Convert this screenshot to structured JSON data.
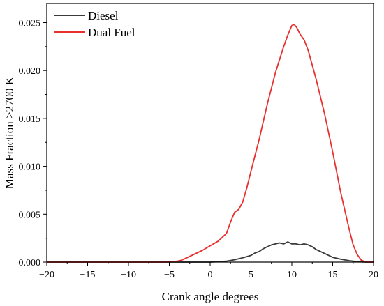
{
  "chart_data": {
    "type": "line",
    "title": "",
    "xlabel": "Crank angle degrees",
    "ylabel": "Mass Fraction >2700 K",
    "xlim": [
      -20,
      20
    ],
    "ylim": [
      0,
      0.027
    ],
    "x_ticks": [
      "−20",
      "−15",
      "−10",
      "−5",
      "0",
      "5",
      "10",
      "15",
      "20"
    ],
    "y_ticks": [
      "0.000",
      "0.005",
      "0.010",
      "0.015",
      "0.020",
      "0.025"
    ],
    "legend_position": "top-left",
    "grid": false,
    "series": [
      {
        "name": "Diesel",
        "color": "#3a3a3a",
        "x": [
          -20,
          -10,
          0,
          0.5,
          1,
          2,
          3,
          4,
          5,
          5.5,
          6,
          6.5,
          7,
          7.5,
          8,
          8.5,
          9,
          9.5,
          10,
          10.5,
          11,
          11.5,
          12,
          12.5,
          13,
          14,
          15,
          16,
          17,
          18,
          19,
          20
        ],
        "y": [
          0,
          0,
          0,
          2e-05,
          5e-05,
          0.0001,
          0.00025,
          0.00045,
          0.0007,
          0.00095,
          0.0011,
          0.0014,
          0.0016,
          0.0018,
          0.0019,
          0.002,
          0.0019,
          0.0021,
          0.0019,
          0.0019,
          0.0018,
          0.0019,
          0.0018,
          0.0016,
          0.0013,
          0.0009,
          0.0005,
          0.0003,
          0.00015,
          5e-05,
          0,
          0
        ]
      },
      {
        "name": "Dual Fuel",
        "color": "#e8302f",
        "x": [
          -20,
          -10,
          -5,
          -4,
          -3.5,
          -3,
          -2,
          -1,
          0,
          1,
          2,
          2.5,
          3,
          3.5,
          4,
          4.5,
          5,
          6,
          7,
          8,
          9,
          9.5,
          10,
          10.3,
          10.6,
          11,
          11.5,
          12,
          13,
          14,
          15,
          16,
          17,
          17.5,
          18,
          18.5,
          19,
          19.5,
          20
        ],
        "y": [
          0,
          0,
          0,
          0.0001,
          0.0002,
          0.0004,
          0.0008,
          0.0012,
          0.0017,
          0.0022,
          0.003,
          0.0042,
          0.0052,
          0.0055,
          0.0063,
          0.0078,
          0.0095,
          0.0128,
          0.0165,
          0.0198,
          0.0225,
          0.0237,
          0.0247,
          0.0248,
          0.0245,
          0.0238,
          0.0232,
          0.0221,
          0.019,
          0.0155,
          0.0115,
          0.0072,
          0.0035,
          0.0018,
          0.0008,
          0.0002,
          5e-05,
          0,
          0
        ]
      }
    ]
  }
}
